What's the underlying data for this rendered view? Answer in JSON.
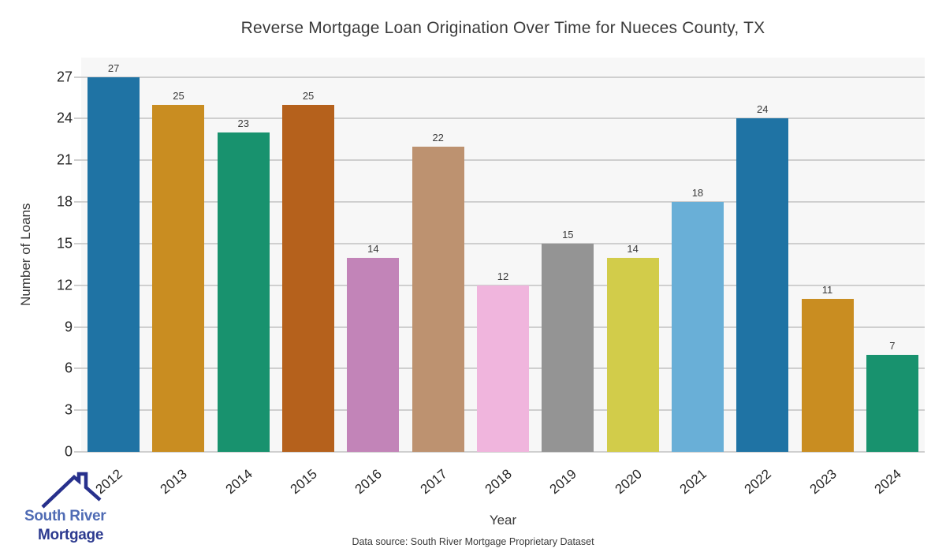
{
  "chart_data": {
    "type": "bar",
    "title": "Reverse Mortgage Loan Origination Over Time for Nueces County, TX",
    "xlabel": "Year",
    "ylabel": "Number of Loans",
    "categories": [
      "2012",
      "2013",
      "2014",
      "2015",
      "2016",
      "2017",
      "2018",
      "2019",
      "2020",
      "2021",
      "2022",
      "2023",
      "2024"
    ],
    "values": [
      27,
      25,
      23,
      25,
      14,
      22,
      12,
      15,
      14,
      18,
      24,
      11,
      7
    ],
    "bar_colors": [
      "#1f73a4",
      "#c98d21",
      "#18926e",
      "#b5611c",
      "#c284b8",
      "#bd9270",
      "#f0b5dd",
      "#949494",
      "#d2cc4a",
      "#69afd7",
      "#1f73a4",
      "#c98d21",
      "#18926e"
    ],
    "yticks": [
      0,
      3,
      6,
      9,
      12,
      15,
      18,
      21,
      24,
      27
    ],
    "ylim": [
      0,
      28.4
    ],
    "grid": "horizontal",
    "legend": "none",
    "plot_bg": "#f7f7f7",
    "grid_color": "#cfcfcf"
  },
  "footer": {
    "source_text": "Data source: South River Mortgage Proprietary Dataset"
  },
  "logo": {
    "line1": "South River",
    "line2": "Mortgage",
    "line1_color": "#4f6bb4",
    "line2_color": "#2c3a8f",
    "roof_color": "#27308c"
  }
}
